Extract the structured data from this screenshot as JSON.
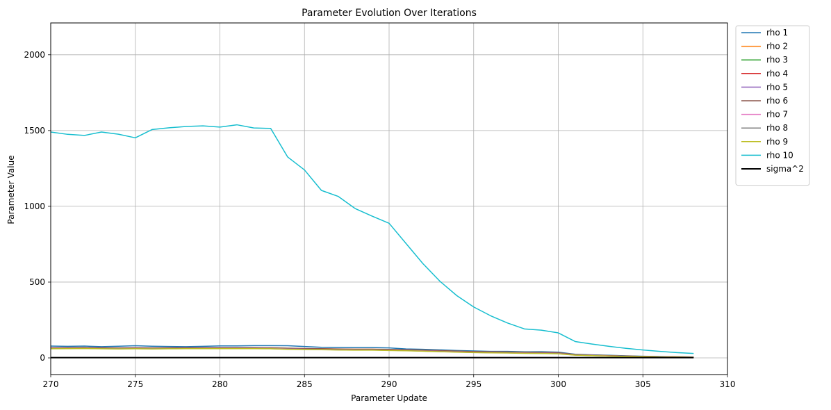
{
  "chart_data": {
    "type": "line",
    "title": "Parameter Evolution Over Iterations",
    "xlabel": "Parameter Update",
    "ylabel": "Parameter Value",
    "xlim": [
      270,
      310
    ],
    "ylim": [
      -110,
      2210
    ],
    "xticks": [
      270,
      275,
      280,
      285,
      290,
      295,
      300,
      305,
      310
    ],
    "yticks": [
      0,
      500,
      1000,
      1500,
      2000
    ],
    "grid": true,
    "legend_position": "outside-right",
    "x": [
      270,
      271,
      272,
      273,
      274,
      275,
      276,
      277,
      278,
      279,
      280,
      281,
      282,
      283,
      284,
      285,
      286,
      287,
      288,
      289,
      290,
      291,
      292,
      293,
      294,
      295,
      296,
      297,
      298,
      299,
      300,
      301,
      302,
      303,
      304,
      305,
      306,
      307,
      308
    ],
    "series": [
      {
        "name": "rho 1",
        "color": "#1f77b4",
        "width": 1.5,
        "values": [
          78,
          76,
          78,
          74,
          77,
          80,
          77,
          75,
          74,
          76,
          79,
          79,
          81,
          81,
          80,
          75,
          70,
          69,
          68,
          68,
          66,
          59,
          57,
          53,
          49,
          46,
          43,
          43,
          40,
          41,
          38,
          24,
          20,
          17,
          14,
          11,
          9,
          7,
          6
        ]
      },
      {
        "name": "rho 2",
        "color": "#ff7f0e",
        "width": 1.5,
        "values": [
          66,
          67,
          68,
          66,
          65,
          66,
          65,
          66,
          67,
          67,
          67,
          67,
          67,
          66,
          63,
          61,
          60,
          58,
          57,
          57,
          55,
          53,
          50,
          47,
          44,
          41,
          39,
          38,
          36,
          35,
          33,
          22,
          18,
          15,
          12,
          10,
          8,
          7,
          6
        ]
      },
      {
        "name": "rho 3",
        "color": "#2ca02c",
        "width": 1.5,
        "values": [
          64,
          65,
          66,
          64,
          63,
          64,
          63,
          64,
          65,
          65,
          65,
          65,
          65,
          64,
          61,
          59,
          58,
          56,
          55,
          55,
          53,
          51,
          48,
          45,
          42,
          39,
          37,
          36,
          34,
          33,
          31,
          21,
          17,
          14,
          11,
          9,
          8,
          6,
          5
        ]
      },
      {
        "name": "rho 4",
        "color": "#d62728",
        "width": 1.5,
        "values": [
          65,
          66,
          67,
          65,
          64,
          65,
          64,
          65,
          66,
          66,
          66,
          66,
          66,
          65,
          62,
          60,
          59,
          57,
          56,
          56,
          54,
          52,
          49,
          46,
          43,
          40,
          38,
          37,
          35,
          34,
          32,
          21,
          17,
          14,
          11,
          9,
          8,
          6,
          5
        ]
      },
      {
        "name": "rho 5",
        "color": "#9467bd",
        "width": 1.5,
        "values": [
          63,
          64,
          65,
          63,
          62,
          63,
          62,
          63,
          64,
          64,
          64,
          64,
          64,
          63,
          60,
          58,
          57,
          55,
          54,
          54,
          52,
          50,
          47,
          44,
          41,
          38,
          36,
          35,
          33,
          32,
          30,
          20,
          16,
          13,
          11,
          9,
          7,
          6,
          5
        ]
      },
      {
        "name": "rho 6",
        "color": "#8c564b",
        "width": 1.5,
        "values": [
          67,
          68,
          69,
          67,
          66,
          67,
          66,
          67,
          68,
          68,
          68,
          68,
          68,
          67,
          64,
          62,
          61,
          59,
          58,
          58,
          56,
          54,
          51,
          48,
          45,
          42,
          40,
          39,
          37,
          36,
          34,
          22,
          18,
          15,
          12,
          10,
          8,
          7,
          6
        ]
      },
      {
        "name": "rho 7",
        "color": "#e377c2",
        "width": 1.5,
        "values": [
          62,
          63,
          64,
          62,
          61,
          62,
          61,
          62,
          63,
          63,
          63,
          63,
          63,
          62,
          59,
          57,
          56,
          54,
          53,
          53,
          51,
          49,
          46,
          43,
          40,
          37,
          35,
          34,
          32,
          31,
          29,
          19,
          16,
          13,
          10,
          8,
          7,
          6,
          5
        ]
      },
      {
        "name": "rho 8",
        "color": "#7f7f7f",
        "width": 1.5,
        "values": [
          61,
          62,
          63,
          61,
          60,
          61,
          60,
          61,
          62,
          62,
          62,
          62,
          62,
          61,
          58,
          56,
          55,
          53,
          52,
          52,
          50,
          48,
          45,
          42,
          39,
          36,
          34,
          33,
          31,
          30,
          28,
          19,
          15,
          12,
          10,
          8,
          7,
          5,
          4
        ]
      },
      {
        "name": "rho 9",
        "color": "#bcbd22",
        "width": 1.5,
        "values": [
          60,
          61,
          62,
          60,
          59,
          60,
          59,
          60,
          61,
          61,
          61,
          61,
          61,
          60,
          57,
          55,
          54,
          52,
          51,
          51,
          49,
          47,
          44,
          41,
          38,
          35,
          33,
          32,
          30,
          29,
          27,
          18,
          15,
          12,
          10,
          8,
          6,
          5,
          4
        ]
      },
      {
        "name": "rho 10",
        "color": "#17becf",
        "width": 1.5,
        "values": [
          1490,
          1475,
          1468,
          1490,
          1476,
          1452,
          1507,
          1518,
          1527,
          1531,
          1523,
          1538,
          1517,
          1514,
          1326,
          1240,
          1105,
          1065,
          985,
          935,
          888,
          755,
          622,
          506,
          411,
          336,
          278,
          230,
          191,
          183,
          165,
          108,
          91,
          76,
          63,
          52,
          43,
          35,
          29
        ]
      },
      {
        "name": "sigma^2",
        "color": "#000000",
        "width": 2,
        "values": [
          2,
          2,
          2,
          2,
          2,
          2,
          2,
          2,
          2,
          2,
          2,
          2,
          2,
          2,
          2,
          2,
          2,
          2,
          2,
          2,
          2,
          2,
          2,
          2,
          2,
          2,
          2,
          2,
          2,
          2,
          2,
          2,
          2,
          2,
          2,
          2,
          2,
          2,
          2
        ]
      }
    ]
  }
}
